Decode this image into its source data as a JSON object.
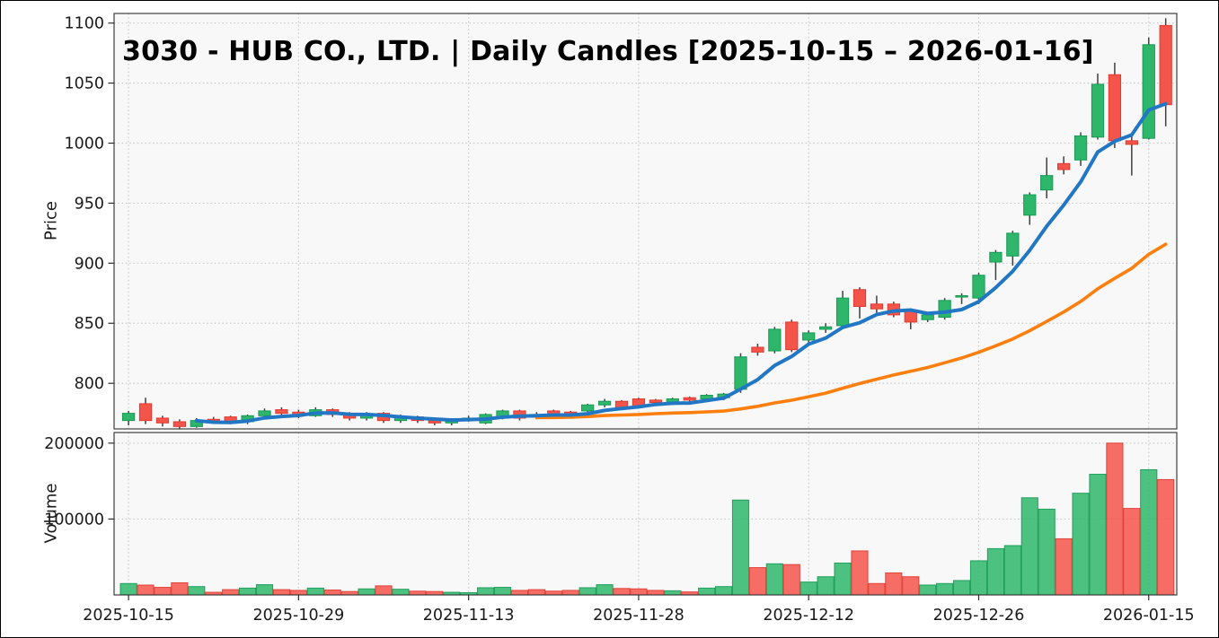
{
  "title": "3030 - HUB CO., LTD. | Daily Candles [2025-10-15 – 2026-01-16]",
  "symbol": "3030",
  "company": "HUB CO., LTD.",
  "period_start": "2025-10-15",
  "period_end": "2026-01-16",
  "axes": {
    "price_label": "Price",
    "volume_label": "Volume"
  },
  "colors": {
    "up": "#2eb76b",
    "up_edge": "#169a54",
    "down": "#f4554a",
    "down_edge": "#e03a30",
    "wick": "#3f3f3f",
    "sma_fast": "#2277c4",
    "sma_slow": "#ff7f0e",
    "grid": "#c9c9c9",
    "panel_bg": "#f8f8f8",
    "spine": "#2d2d2d",
    "text": "#1a1a1a"
  },
  "chart_data": {
    "type": "candlestick",
    "title": "3030 - HUB CO., LTD. | Daily Candles [2025-10-15 – 2026-01-16]",
    "xlabel": "",
    "ylabel": "Price",
    "ylabel2": "Volume",
    "grid": "dotted",
    "legend_position": "none",
    "ylim": [
      762,
      1108
    ],
    "volume_ylim": [
      0,
      214000
    ],
    "xlim": [
      -0.85,
      61.65
    ],
    "price_ticks": [
      800,
      850,
      900,
      950,
      1000,
      1050,
      1100
    ],
    "volume_ticks": [
      100000,
      200000
    ],
    "x_ticks": [
      {
        "index": 0,
        "label": "2025-10-15"
      },
      {
        "index": 10,
        "label": "2025-10-29"
      },
      {
        "index": 20,
        "label": "2025-11-13"
      },
      {
        "index": 30,
        "label": "2025-11-28"
      },
      {
        "index": 40,
        "label": "2025-12-12"
      },
      {
        "index": 50,
        "label": "2025-12-26"
      },
      {
        "index": 60,
        "label": "2026-01-15"
      }
    ],
    "dates": [
      "2025-10-15",
      "2025-10-16",
      "2025-10-17",
      "2025-10-20",
      "2025-10-21",
      "2025-10-22",
      "2025-10-23",
      "2025-10-24",
      "2025-10-27",
      "2025-10-28",
      "2025-10-29",
      "2025-10-30",
      "2025-10-31",
      "2025-11-04",
      "2025-11-05",
      "2025-11-06",
      "2025-11-07",
      "2025-11-10",
      "2025-11-11",
      "2025-11-12",
      "2025-11-13",
      "2025-11-14",
      "2025-11-17",
      "2025-11-18",
      "2025-11-19",
      "2025-11-20",
      "2025-11-21",
      "2025-11-25",
      "2025-11-26",
      "2025-11-27",
      "2025-11-28",
      "2025-12-01",
      "2025-12-02",
      "2025-12-03",
      "2025-12-04",
      "2025-12-05",
      "2025-12-08",
      "2025-12-09",
      "2025-12-10",
      "2025-12-11",
      "2025-12-12",
      "2025-12-15",
      "2025-12-16",
      "2025-12-17",
      "2025-12-18",
      "2025-12-19",
      "2025-12-22",
      "2025-12-23",
      "2025-12-24",
      "2025-12-25",
      "2025-12-26",
      "2025-12-29",
      "2025-12-30",
      "2026-01-05",
      "2026-01-06",
      "2026-01-07",
      "2026-01-08",
      "2026-01-09",
      "2026-01-13",
      "2026-01-14",
      "2026-01-15",
      "2026-01-16"
    ],
    "open": [
      769,
      783,
      771,
      768,
      764,
      770,
      772,
      768,
      773,
      778,
      776,
      773,
      778,
      774,
      771,
      775,
      769,
      772,
      769,
      767,
      770,
      767,
      772,
      777,
      773,
      777,
      776,
      777,
      782,
      785,
      787,
      786,
      784,
      788,
      787,
      788,
      795,
      830,
      827,
      851,
      836,
      845,
      848,
      878,
      866,
      866,
      860,
      853,
      855,
      872,
      871,
      901,
      906,
      940,
      961,
      983,
      986,
      1005,
      1057,
      1002,
      1004,
      1098
    ],
    "high": [
      777,
      788,
      773,
      770,
      771,
      772,
      773,
      774,
      779,
      780,
      778,
      780,
      779,
      776,
      776,
      776,
      774,
      773,
      771,
      771,
      773,
      775,
      778,
      778,
      776,
      778,
      777,
      783,
      787,
      786,
      788,
      787,
      788,
      789,
      791,
      792,
      825,
      833,
      847,
      853,
      844,
      850,
      877,
      880,
      873,
      868,
      862,
      859,
      871,
      875,
      892,
      911,
      927,
      959,
      988,
      989,
      1009,
      1058,
      1067,
      1007,
      1088,
      1104
    ],
    "low": [
      765,
      766,
      764,
      762,
      763,
      767,
      766,
      766,
      771,
      773,
      771,
      772,
      772,
      769,
      769,
      767,
      767,
      767,
      765,
      765,
      768,
      766,
      770,
      769,
      770,
      772,
      772,
      775,
      780,
      778,
      779,
      782,
      782,
      784,
      785,
      786,
      792,
      823,
      825,
      826,
      833,
      842,
      846,
      854,
      858,
      855,
      845,
      851,
      853,
      866,
      866,
      886,
      898,
      932,
      954,
      974,
      981,
      1003,
      996,
      973,
      1003,
      1014
    ],
    "close": [
      775,
      769,
      767,
      764,
      769,
      769,
      768,
      773,
      777,
      775,
      773,
      778,
      774,
      771,
      774,
      769,
      772,
      769,
      767,
      770,
      771,
      774,
      777,
      771,
      772,
      774,
      774,
      782,
      785,
      780,
      781,
      784,
      787,
      786,
      790,
      791,
      822,
      826,
      845,
      828,
      842,
      847,
      871,
      864,
      862,
      857,
      851,
      857,
      869,
      873,
      890,
      909,
      925,
      957,
      973,
      978,
      1006,
      1049,
      1002,
      999,
      1082,
      1032
    ],
    "volume": [
      15000,
      13000,
      10000,
      16000,
      11000,
      3500,
      7000,
      9000,
      13500,
      7000,
      6000,
      9000,
      6500,
      4500,
      8000,
      12000,
      7500,
      5000,
      4500,
      3500,
      3000,
      9500,
      10000,
      6000,
      7000,
      5000,
      6000,
      9500,
      13500,
      8500,
      8000,
      6000,
      5500,
      4000,
      9000,
      11000,
      125000,
      36000,
      41000,
      40000,
      17000,
      24000,
      42000,
      58000,
      15000,
      29000,
      24000,
      13000,
      15000,
      19000,
      45000,
      61000,
      65000,
      128000,
      113000,
      74000,
      134000,
      159000,
      200000,
      114000,
      165000,
      152000
    ],
    "sma5": [
      null,
      null,
      null,
      null,
      768.8,
      767.6,
      767.4,
      768.6,
      771.2,
      772.4,
      773.2,
      775.2,
      775.4,
      774.2,
      774.0,
      773.2,
      772.0,
      771.0,
      770.2,
      769.4,
      769.8,
      770.2,
      771.8,
      772.6,
      773.0,
      773.6,
      773.6,
      774.6,
      777.4,
      779.0,
      780.4,
      782.4,
      783.4,
      783.6,
      785.6,
      787.6,
      795.2,
      803.0,
      814.8,
      822.4,
      832.6,
      837.6,
      846.6,
      850.4,
      857.2,
      860.2,
      861.0,
      858.2,
      859.2,
      861.4,
      868.0,
      879.6,
      893.2,
      910.8,
      930.8,
      948.4,
      967.8,
      992.6,
      1001.6,
      1006.8,
      1027.6,
      1032.8
    ],
    "sma25": [
      null,
      null,
      null,
      null,
      null,
      null,
      null,
      null,
      null,
      null,
      null,
      null,
      null,
      null,
      null,
      null,
      null,
      null,
      null,
      null,
      null,
      null,
      null,
      null,
      771.5,
      771.5,
      771.7,
      772.3,
      773.1,
      773.6,
      774.0,
      774.7,
      775.2,
      775.6,
      776.2,
      776.9,
      778.7,
      780.8,
      783.7,
      785.9,
      788.8,
      791.8,
      795.9,
      799.8,
      803.4,
      806.9,
      810.0,
      813.2,
      817.1,
      821.1,
      825.8,
      831.2,
      836.9,
      843.8,
      851.5,
      859.4,
      868.2,
      878.7,
      887.4,
      895.7,
      907.4,
      915.8
    ]
  }
}
